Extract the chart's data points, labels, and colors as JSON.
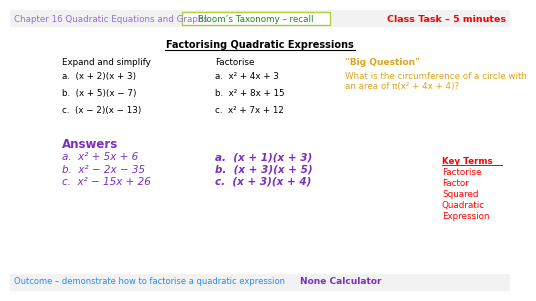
{
  "bg_color": "#ffffff",
  "title_text": "Chapter 16 Quadratic Equations and Graphs",
  "title_color": "#9370DB",
  "bloom_text": "Bloom’s Taxonomy – recall",
  "bloom_color": "#228B22",
  "bloom_box_edge": "#ADCF3B",
  "bloom_box_face": "#ffffff",
  "class_task_text": "Class Task – 5 minutes",
  "class_task_color": "#ff0000",
  "section_title": "Factorising Quadratic Expressions",
  "section_title_color": "#000000",
  "expand_label": "Expand and simplify",
  "factorise_label": "Factorise",
  "expand_items": [
    "a.  (x + 2)(x + 3)",
    "b.  (x + 5)(x − 7)",
    "c.  (x − 2)(x − 13)"
  ],
  "factorise_items": [
    "a.  x² + 4x + 3",
    "b.  x² + 8x + 15",
    "c.  x² + 7x + 12"
  ],
  "big_question_label": "\"Big Question\"",
  "big_question_color": "#DAA520",
  "big_question_text": "What is the circumference of a circle with\nan area of π(x² + 4x + 4)?",
  "answers_label": "Answers",
  "answers_color": "#7B2FBE",
  "answer_expand": [
    "a.  x² + 5x + 6",
    "b.  x² − 2x − 35",
    "c.  x² − 15x + 26"
  ],
  "answer_factorise": [
    "a.  (x + 1)(x + 3)",
    "b.  (x + 3)(x + 5)",
    "c.  (x + 3)(x + 4)"
  ],
  "key_terms_label": "Key Terms",
  "key_terms_label_color": "#ff0000",
  "key_terms_items": [
    "Factorise",
    "Factor",
    "Squared",
    "Quadratic",
    "Expression"
  ],
  "key_terms_items_color": "#ff0000",
  "outcome_text": "Outcome – demonstrate how to factorise a quadratic expression",
  "outcome_color": "#1E90FF",
  "none_calc_text": "None Calculator",
  "none_calc_color": "#7B2FBE",
  "header_bar_color": "#f2f2f2",
  "bottom_bar_color": "#f2f2f2"
}
